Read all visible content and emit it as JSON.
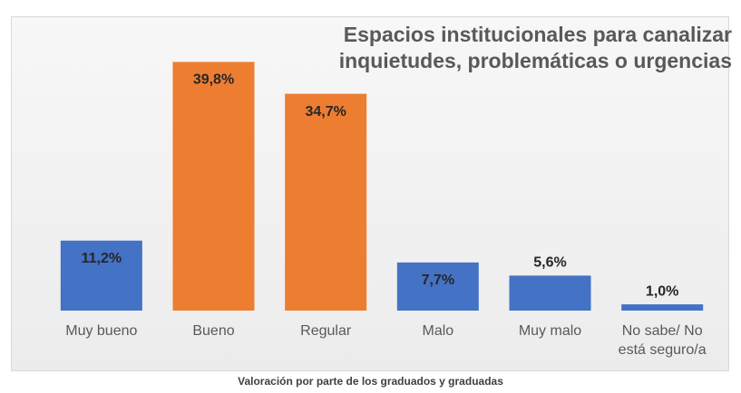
{
  "chart_data": {
    "type": "bar",
    "title": "Espacios institucionales para canalizar inquietudes, problemáticas o urgencias",
    "x_label": "Valoración por parte de los graduados y graduadas",
    "categories": [
      "Muy bueno",
      "Bueno",
      "Regular",
      "Malo",
      "Muy malo",
      "No sabe/ No está seguro/a"
    ],
    "values": [
      11.2,
      39.8,
      34.7,
      7.7,
      5.6,
      1.0
    ],
    "value_labels": [
      "11,2%",
      "39,8%",
      "34,7%",
      "7,7%",
      "5,6%",
      "1,0%"
    ],
    "colors": [
      "#4472c4",
      "#ed7d31",
      "#ed7d31",
      "#4472c4",
      "#4472c4",
      "#4472c4"
    ],
    "ylim": [
      0,
      40
    ]
  }
}
